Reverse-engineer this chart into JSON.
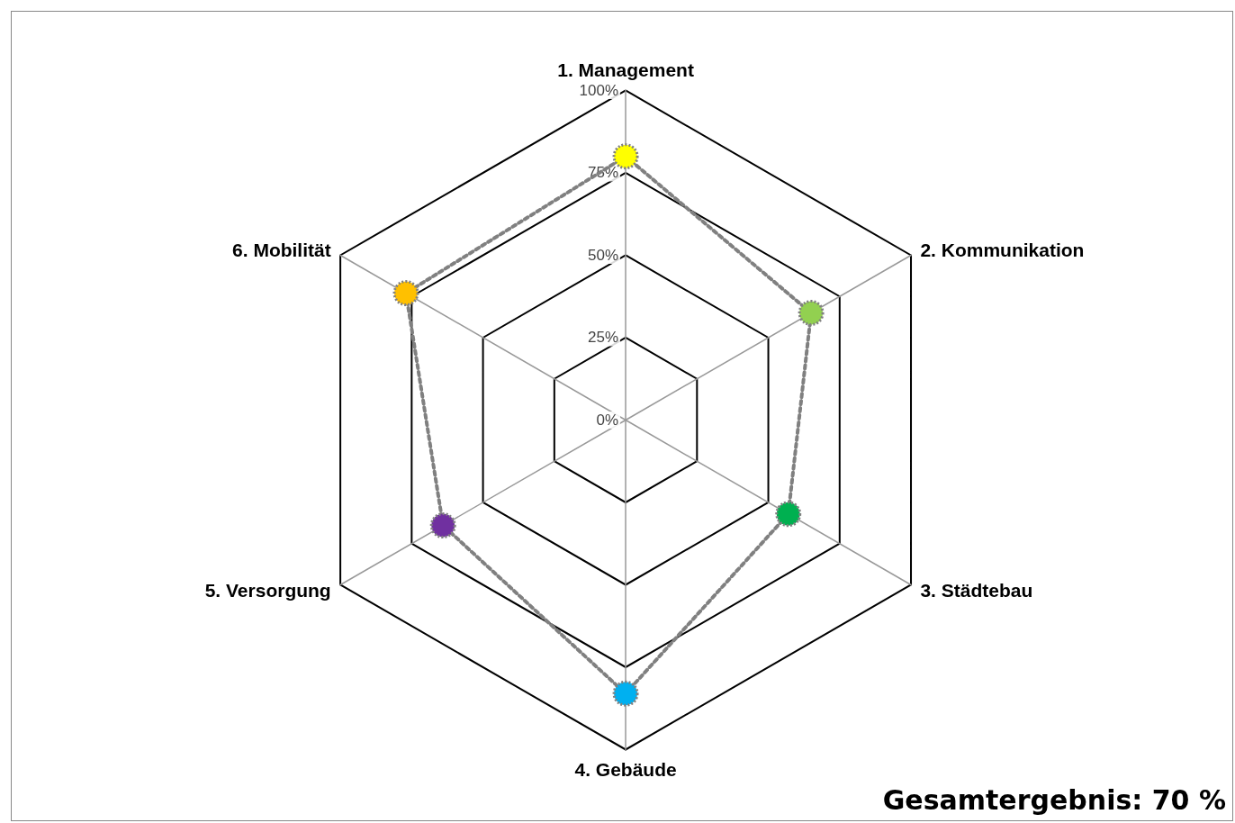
{
  "chart_data": {
    "type": "radar",
    "categories": [
      "1. Management",
      "2. Kommunikation",
      "3. Städtebau",
      "4. Gebäude",
      "5. Versorgung",
      "6. Mobilität"
    ],
    "series": [
      {
        "color": "#808080",
        "colors": [
          "#ffff00",
          "#92d050",
          "#00b050",
          "#00b0f0",
          "#7030a0",
          "#ffc000"
        ],
        "values": [
          80,
          65,
          57,
          83,
          64,
          77
        ]
      }
    ],
    "ylim": [
      0,
      100
    ],
    "yticks": [
      {
        "value": 0,
        "label": "0%"
      },
      {
        "value": 25,
        "label": "25%"
      },
      {
        "value": 50,
        "label": "50%"
      },
      {
        "value": 75,
        "label": "75%"
      },
      {
        "value": 100,
        "label": "100%"
      }
    ],
    "marker": "circle",
    "line_style": "dotted",
    "annotations": [
      "Gesamtergebnis: 70 %"
    ]
  }
}
